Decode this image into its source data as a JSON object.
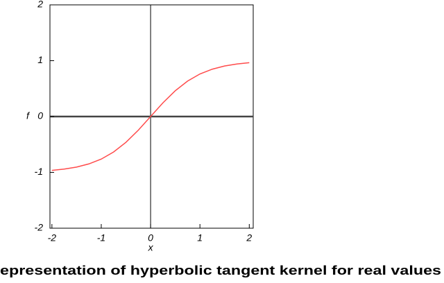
{
  "chart_data": {
    "type": "line",
    "caption": "epresentation of hyperbolic tangent kernel for real values",
    "xlabel": "x",
    "ylabel": "f",
    "x": [
      -2,
      -1.75,
      -1.5,
      -1.25,
      -1,
      -0.75,
      -0.5,
      -0.25,
      0,
      0.25,
      0.5,
      0.75,
      1,
      1.25,
      1.5,
      1.75,
      2
    ],
    "series": [
      {
        "color": "#ff4b4b",
        "values": [
          -0.964,
          -0.941,
          -0.905,
          -0.848,
          -0.762,
          -0.635,
          -0.462,
          -0.245,
          0,
          0.245,
          0.462,
          0.635,
          0.762,
          0.848,
          0.905,
          0.941,
          0.964
        ]
      }
    ],
    "xlim": [
      -2.04,
      2.08
    ],
    "ylim": [
      -2,
      2
    ],
    "xticks": [
      -2,
      -1,
      0,
      1,
      2
    ],
    "yticks": [
      -2,
      -1,
      0,
      1,
      2
    ]
  }
}
